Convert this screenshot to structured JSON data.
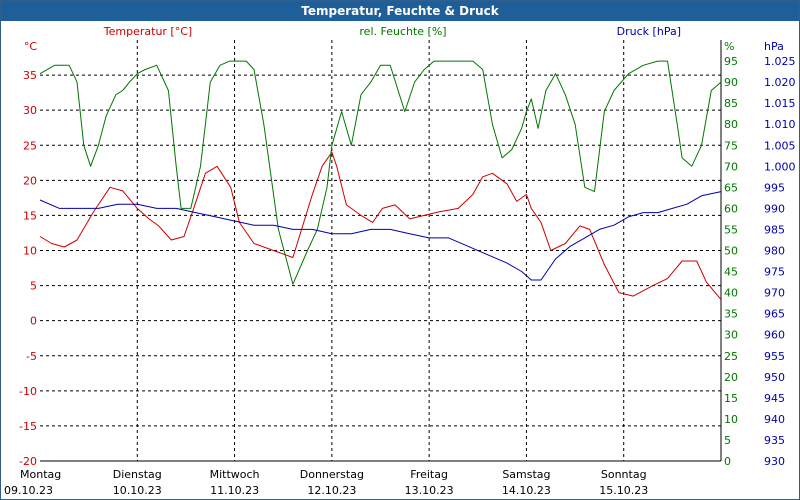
{
  "window": {
    "title": "Temperatur, Feuchte & Druck"
  },
  "colors": {
    "temperature": "#cc0000",
    "humidity": "#007700",
    "pressure": "#0000aa",
    "grid": "#000000",
    "titlebar": "#1e5f9a"
  },
  "chart_data": {
    "type": "line",
    "title": "Temperatur, Feuchte & Druck",
    "grid": true,
    "x_range": [
      0,
      7
    ],
    "day_labels": [
      {
        "day": "Montag",
        "date": "09.10.23",
        "x": 0
      },
      {
        "day": "Dienstag",
        "date": "10.10.23",
        "x": 1
      },
      {
        "day": "Mittwoch",
        "date": "11.10.23",
        "x": 2
      },
      {
        "day": "Donnerstag",
        "date": "12.10.23",
        "x": 3
      },
      {
        "day": "Freitag",
        "date": "13.10.23",
        "x": 4
      },
      {
        "day": "Samstag",
        "date": "14.10.23",
        "x": 5
      },
      {
        "day": "Sonntag",
        "date": "15.10.23",
        "x": 6
      }
    ],
    "axes": {
      "temperature": {
        "label": "Temperatur [°C]",
        "unit": "°C",
        "range": [
          -20,
          40
        ],
        "ticks": [
          -20,
          -15,
          -10,
          -5,
          0,
          5,
          10,
          15,
          20,
          25,
          30,
          35
        ]
      },
      "humidity": {
        "label": "rel. Feuchte [%]",
        "unit": "%",
        "range": [
          0,
          100
        ],
        "ticks": [
          0,
          5,
          10,
          15,
          20,
          25,
          30,
          35,
          40,
          45,
          50,
          55,
          60,
          65,
          70,
          75,
          80,
          85,
          90,
          95
        ]
      },
      "pressure": {
        "label": "Druck [hPa]",
        "unit": "hPa",
        "range": [
          930,
          1030
        ],
        "ticks": [
          "930",
          "935",
          "940",
          "945",
          "950",
          "955",
          "960",
          "965",
          "970",
          "975",
          "980",
          "985",
          "990",
          "995",
          "1.000",
          "1.005",
          "1.010",
          "1.015",
          "1.020",
          "1.025"
        ]
      }
    },
    "series": [
      {
        "name": "Temperatur",
        "axis": "temperature",
        "x": [
          0,
          0.12,
          0.25,
          0.38,
          0.55,
          0.72,
          0.85,
          1.0,
          1.12,
          1.22,
          1.35,
          1.48,
          1.58,
          1.7,
          1.82,
          1.96,
          2.05,
          2.2,
          2.4,
          2.6,
          2.8,
          2.9,
          3.0,
          3.05,
          3.15,
          3.3,
          3.42,
          3.52,
          3.65,
          3.8,
          3.95,
          4.1,
          4.3,
          4.45,
          4.55,
          4.65,
          4.8,
          4.9,
          5.0,
          5.05,
          5.15,
          5.25,
          5.4,
          5.55,
          5.65,
          5.8,
          5.95,
          6.1,
          6.3,
          6.45,
          6.6,
          6.75,
          6.85,
          7.0
        ],
        "values": [
          12,
          11,
          10.5,
          11.5,
          15.5,
          19,
          18.5,
          16,
          14.5,
          13.5,
          11.5,
          12,
          16,
          21,
          22,
          19,
          14,
          11,
          10,
          9,
          18,
          22,
          24,
          22,
          16.5,
          15,
          14,
          16,
          16.5,
          14.5,
          15,
          15.5,
          16,
          18,
          20.5,
          21,
          19.5,
          17,
          18,
          16,
          14,
          10,
          11,
          13.5,
          13,
          8,
          4,
          3.5,
          5,
          6,
          8.5,
          8.5,
          5.5,
          3
        ]
      },
      {
        "name": "rel. Feuchte",
        "axis": "humidity",
        "x": [
          0,
          0.15,
          0.3,
          0.38,
          0.45,
          0.52,
          0.6,
          0.68,
          0.78,
          0.85,
          0.92,
          1.0,
          1.08,
          1.2,
          1.32,
          1.4,
          1.45,
          1.55,
          1.65,
          1.75,
          1.85,
          1.95,
          2.05,
          2.12,
          2.2,
          2.3,
          2.45,
          2.6,
          2.75,
          2.85,
          2.95,
          3.0,
          3.1,
          3.2,
          3.3,
          3.4,
          3.5,
          3.6,
          3.75,
          3.85,
          3.95,
          4.05,
          4.15,
          4.25,
          4.35,
          4.45,
          4.55,
          4.65,
          4.75,
          4.85,
          4.95,
          5.0,
          5.05,
          5.12,
          5.2,
          5.3,
          5.4,
          5.5,
          5.6,
          5.7,
          5.8,
          5.9,
          6.05,
          6.2,
          6.35,
          6.45,
          6.55,
          6.6,
          6.7,
          6.8,
          6.9,
          7.0
        ],
        "values": [
          92,
          94,
          94,
          90,
          75,
          70,
          75,
          82,
          87,
          88,
          90,
          92,
          93,
          94,
          88,
          70,
          60,
          60,
          70,
          90,
          94,
          95,
          95,
          95,
          93,
          80,
          55,
          42,
          50,
          55,
          65,
          75,
          83,
          75,
          87,
          90,
          94,
          94,
          83,
          90,
          93,
          95,
          95,
          95,
          95,
          95,
          93,
          80,
          72,
          74,
          79,
          83,
          86,
          79,
          88,
          92,
          87,
          80,
          65,
          64,
          83,
          88,
          92,
          94,
          95,
          95,
          80,
          72,
          70,
          75,
          88,
          90
        ]
      },
      {
        "name": "Druck",
        "axis": "pressure",
        "x": [
          0,
          0.2,
          0.4,
          0.6,
          0.8,
          1.0,
          1.2,
          1.4,
          1.6,
          1.8,
          2.0,
          2.2,
          2.4,
          2.6,
          2.8,
          3.0,
          3.2,
          3.4,
          3.6,
          3.8,
          4.0,
          4.2,
          4.4,
          4.6,
          4.8,
          4.95,
          5.05,
          5.15,
          5.3,
          5.45,
          5.6,
          5.75,
          5.9,
          6.05,
          6.2,
          6.35,
          6.5,
          6.65,
          6.8,
          7.0
        ],
        "values": [
          992,
          990,
          990,
          990,
          991,
          991,
          990,
          990,
          989,
          988,
          987,
          986,
          986,
          985,
          985,
          984,
          984,
          985,
          985,
          984,
          983,
          983,
          981,
          979,
          977,
          975,
          973,
          973,
          978,
          981,
          983,
          985,
          986,
          988,
          989,
          989,
          990,
          991,
          993,
          994
        ]
      }
    ]
  }
}
